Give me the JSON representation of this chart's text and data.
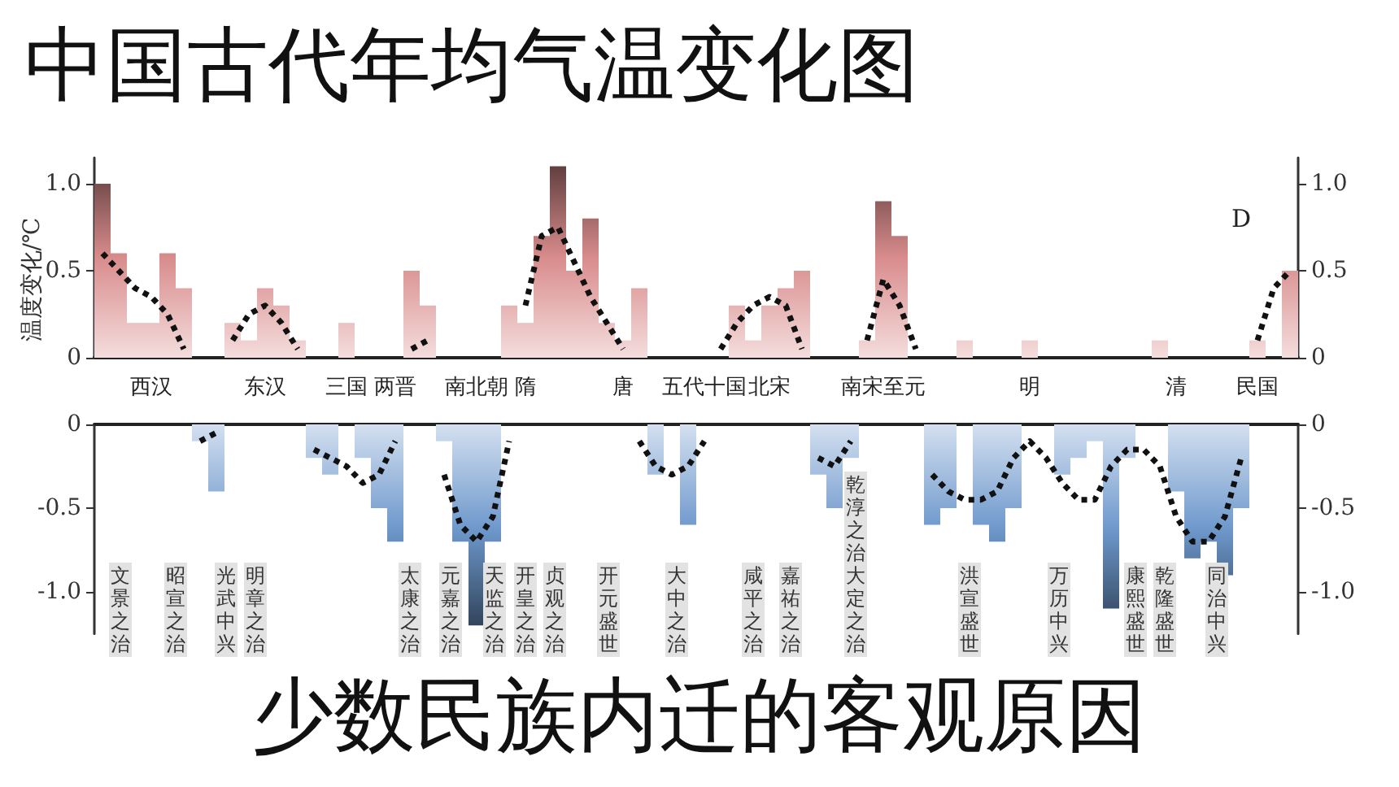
{
  "chart_data": [
    {
      "type": "bar",
      "title": "中国古代年均气温变化图",
      "ylabel": "温度变化/℃",
      "categories": [
        null,
        null,
        null,
        "西汉",
        null,
        null,
        null,
        null,
        null,
        null,
        "东汉",
        null,
        null,
        null,
        null,
        "三国",
        null,
        null,
        "两晋",
        null,
        null,
        null,
        null,
        "南北朝",
        null,
        null,
        "隋",
        null,
        null,
        null,
        null,
        null,
        "唐",
        null,
        null,
        null,
        null,
        "五代十国",
        null,
        null,
        null,
        "北宋",
        null,
        null,
        null,
        null,
        null,
        null,
        "南宋至元",
        null,
        null,
        null,
        null,
        null,
        null,
        null,
        null,
        "明",
        null,
        null,
        null,
        null,
        null,
        null,
        null,
        null,
        "清",
        null,
        null,
        null,
        null,
        "民国",
        null,
        null
      ],
      "series": [
        {
          "color": "#d98c8c",
          "values": [
            1.0,
            0.6,
            0.2,
            0.2,
            0.6,
            0.4,
            null,
            null,
            0.2,
            0.1,
            0.4,
            0.3,
            0.1,
            null,
            null,
            0.2,
            null,
            null,
            null,
            0.5,
            0.3,
            null,
            null,
            null,
            null,
            0.3,
            0.2,
            0.7,
            1.1,
            0.5,
            0.8,
            0.2,
            0.1,
            0.4,
            null,
            null,
            null,
            null,
            null,
            0.3,
            0.1,
            0.3,
            0.4,
            0.5,
            null,
            null,
            null,
            0.1,
            0.9,
            0.7,
            null,
            null,
            null,
            0.1,
            null,
            null,
            null,
            0.1,
            null,
            null,
            null,
            null,
            null,
            null,
            null,
            0.1,
            null,
            null,
            null,
            null,
            null,
            0.1,
            null,
            0.5
          ]
        },
        {
          "type": "line",
          "color": "#111111",
          "line_style": "dotted",
          "marker": "none",
          "values": [
            0.6,
            0.5,
            0.4,
            0.35,
            0.25,
            0.05,
            null,
            null,
            0.1,
            0.25,
            0.3,
            0.2,
            0.05,
            null,
            null,
            null,
            null,
            null,
            null,
            0.05,
            0.1,
            null,
            null,
            null,
            null,
            null,
            0.3,
            0.7,
            0.75,
            0.55,
            0.35,
            0.2,
            0.05,
            null,
            null,
            null,
            null,
            null,
            0.05,
            0.2,
            0.3,
            0.35,
            0.3,
            0.05,
            null,
            null,
            null,
            0.1,
            0.45,
            0.3,
            0.05,
            null,
            null,
            null,
            null,
            null,
            null,
            null,
            null,
            null,
            null,
            null,
            null,
            null,
            null,
            null,
            null,
            null,
            null,
            null,
            null,
            0.1,
            0.4,
            0.5
          ]
        }
      ],
      "ylim": [
        0,
        1.15
      ],
      "yticks": [
        0,
        0.5,
        {
          "value": 1,
          "label": "1.0"
        }
      ],
      "y2lim": [
        0,
        1.15
      ],
      "y2ticks": [
        0,
        0.5,
        {
          "value": 1,
          "label": "1.0"
        }
      ],
      "annotations": [
        "D"
      ]
    },
    {
      "type": "bar",
      "subtitle": "少数民族内迁的客观原因",
      "tick_labels": "y",
      "categories": [
        null,
        null,
        null,
        null,
        null,
        null,
        null,
        null,
        null,
        null,
        null,
        null,
        null,
        null,
        null,
        null,
        null,
        null,
        null,
        null,
        null,
        null,
        null,
        null,
        null,
        null,
        null,
        null,
        null,
        null,
        null,
        null,
        null,
        null,
        null,
        null,
        null,
        null,
        null,
        null,
        null,
        null,
        null,
        null,
        null,
        null,
        null,
        null,
        null,
        null,
        null,
        null,
        null,
        null,
        null,
        null,
        null,
        null,
        null,
        null,
        null,
        null,
        null,
        null,
        null,
        null,
        null,
        null,
        null,
        null,
        null,
        null,
        null,
        null
      ],
      "series": [
        {
          "color": "#6e98cc",
          "values": [
            null,
            null,
            null,
            null,
            null,
            null,
            -0.1,
            -0.4,
            null,
            null,
            null,
            null,
            null,
            -0.2,
            -0.3,
            null,
            -0.2,
            -0.5,
            -0.7,
            null,
            null,
            -0.1,
            -0.7,
            -1.2,
            -0.7,
            null,
            null,
            null,
            null,
            null,
            null,
            null,
            null,
            null,
            -0.3,
            null,
            -0.6,
            null,
            null,
            null,
            null,
            null,
            null,
            null,
            -0.3,
            -0.5,
            -0.2,
            null,
            null,
            null,
            null,
            -0.6,
            -0.5,
            null,
            -0.6,
            -0.7,
            -0.5,
            null,
            null,
            -0.3,
            -0.2,
            -0.1,
            -1.1,
            -0.2,
            null,
            null,
            -0.4,
            -0.8,
            -0.7,
            -0.9,
            -0.5,
            null,
            null,
            null
          ]
        },
        {
          "type": "line",
          "color": "#111111",
          "line_style": "dotted",
          "marker": "none",
          "values": [
            null,
            null,
            null,
            null,
            null,
            null,
            -0.1,
            -0.05,
            null,
            null,
            null,
            null,
            null,
            -0.15,
            -0.2,
            -0.25,
            -0.35,
            -0.3,
            -0.1,
            null,
            null,
            -0.3,
            -0.6,
            -0.7,
            -0.55,
            -0.1,
            null,
            null,
            null,
            null,
            null,
            null,
            null,
            -0.1,
            -0.25,
            -0.3,
            -0.25,
            -0.1,
            null,
            null,
            null,
            null,
            null,
            null,
            -0.2,
            -0.25,
            -0.1,
            null,
            null,
            null,
            null,
            -0.3,
            -0.4,
            -0.45,
            -0.45,
            -0.4,
            -0.2,
            -0.1,
            -0.2,
            -0.35,
            -0.45,
            -0.45,
            -0.25,
            -0.15,
            -0.15,
            -0.25,
            -0.55,
            -0.7,
            -0.7,
            -0.55,
            -0.2,
            null,
            null,
            null
          ]
        }
      ],
      "ylim": [
        -1.25,
        0
      ],
      "yticks": [
        {
          "value": -1,
          "label": "-1.0"
        },
        -0.5,
        0
      ],
      "y2lim": [
        -1.25,
        0
      ],
      "y2ticks": [
        {
          "value": -1,
          "label": "-1.0"
        },
        -0.5,
        0
      ],
      "annotations": [
        "文景之治",
        "昭宣之治",
        "光武中兴",
        "明章之治",
        "太康之治",
        "元嘉之治",
        "天监之治",
        "开皇之治",
        "贞观之治",
        "开元盛世",
        "大中之治",
        "咸平之治",
        "嘉祐之治",
        "乾淳之治",
        "大定之治",
        "洪宣盛世",
        "万历中兴",
        "康熙盛世",
        "乾隆盛世",
        "同治中兴"
      ]
    }
  ]
}
